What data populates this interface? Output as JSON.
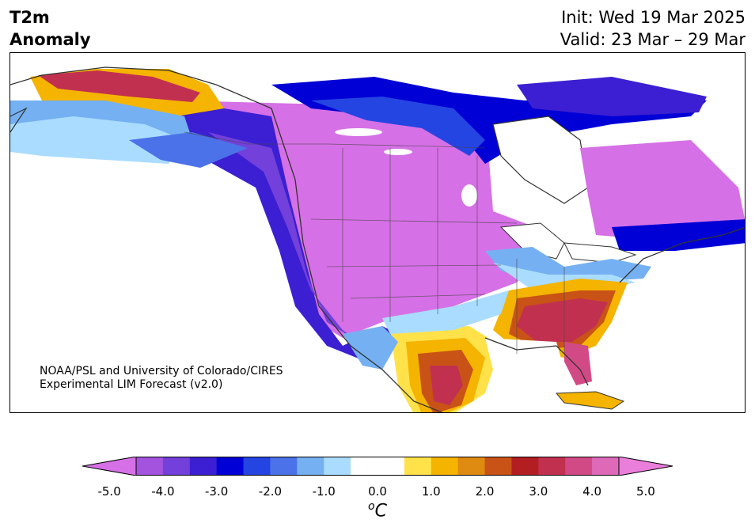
{
  "header": {
    "variable": "T2m",
    "kind": "Anomaly",
    "init": "Init: Wed 19 Mar 2025",
    "valid": "Valid: 23 Mar – 29 Mar"
  },
  "credit": {
    "line1": "NOAA/PSL and University of Colorado/CIRES",
    "line2": "Experimental LIM Forecast (v2.0)"
  },
  "colorbar": {
    "unit_sup": "o",
    "unit": "C",
    "ticks": [
      "-5.0",
      "-4.0",
      "-3.0",
      "-2.0",
      "-1.0",
      "0.0",
      "1.0",
      "2.0",
      "3.0",
      "4.0",
      "5.0"
    ],
    "min": -5,
    "max": 5,
    "step": 0.5,
    "colors": [
      "#d670e6",
      "#a353dd",
      "#7340db",
      "#3c1fd2",
      "#0000d6",
      "#2545e2",
      "#4b72e8",
      "#74b0f2",
      "#aadcff",
      "#ffffff",
      "#ffffff",
      "#ffe24a",
      "#f4b400",
      "#df8a10",
      "#c95316",
      "#b31e22",
      "#c23050",
      "#d24a85",
      "#df69b9",
      "#ea7edb"
    ]
  },
  "map": {
    "region": "North America",
    "anomaly_pattern": "cold over western and central US/Canada, warm over southeastern US and northern Mexico"
  }
}
